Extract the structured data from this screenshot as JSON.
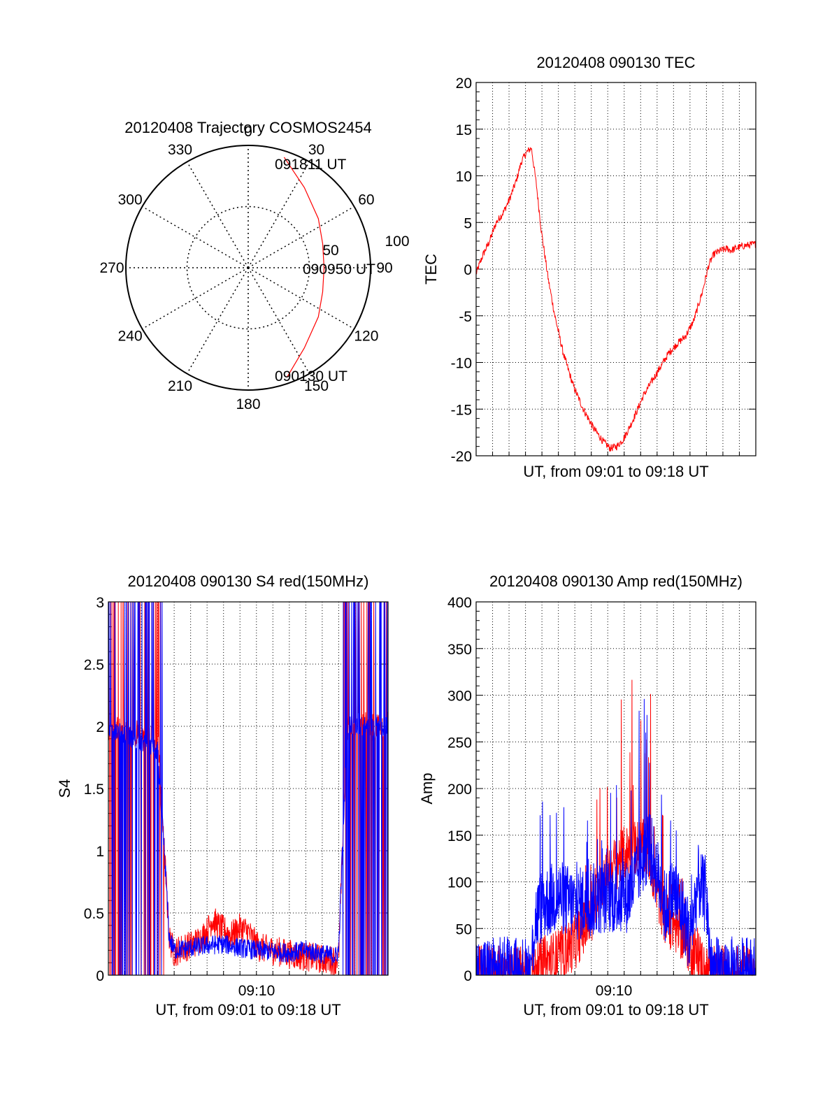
{
  "chart_data": [
    {
      "id": "polar",
      "type": "polar-trajectory",
      "title": "20120408 Trajectory COSMOS2454",
      "azimuth_labels": [
        "0",
        "30",
        "60",
        "90",
        "120",
        "150",
        "180",
        "210",
        "240",
        "270",
        "300",
        "330"
      ],
      "radial_labels": [
        "50",
        "100"
      ],
      "zenith_ticks": [
        0,
        50,
        100
      ],
      "start_label": "090130 UT",
      "mid_label": "090950 UT",
      "end_label": "091811 UT",
      "trajectory": [
        {
          "az": 160.5,
          "zen": 95
        },
        {
          "az": 145,
          "zen": 80
        },
        {
          "az": 125,
          "zen": 70
        },
        {
          "az": 108,
          "zen": 64
        },
        {
          "az": 90,
          "zen": 62
        },
        {
          "az": 72,
          "zen": 64
        },
        {
          "az": 55,
          "zen": 70
        },
        {
          "az": 35,
          "zen": 80
        },
        {
          "az": 18,
          "zen": 95
        }
      ],
      "colors": {
        "line": "#ff0000",
        "grid": "#000000"
      }
    },
    {
      "id": "tec",
      "type": "line",
      "title": "20120408 090130 TEC",
      "xlabel": "UT, from 09:01 to 09:18 UT",
      "ylabel": "TEC",
      "ylim": [
        -20,
        20
      ],
      "yticks": [
        20,
        15,
        10,
        5,
        0,
        -5,
        -10,
        -15,
        -20
      ],
      "xlim": [
        0,
        16.7
      ],
      "series": [
        {
          "color": "#ff0000",
          "x": [
            0.0,
            0.4,
            0.8,
            1.2,
            1.6,
            2.0,
            2.4,
            2.7,
            3.0,
            3.3,
            3.6,
            3.9,
            4.3,
            4.7,
            5.2,
            5.8,
            6.4,
            7.0,
            7.6,
            8.0,
            8.4,
            8.8,
            9.2,
            9.6,
            10.0,
            10.5,
            11.0,
            11.5,
            12.0,
            12.5,
            13.0,
            13.5,
            13.9,
            14.2,
            14.6,
            15.0,
            15.2,
            15.6,
            16.0,
            16.7
          ],
          "y": [
            -0.5,
            1.5,
            3.0,
            5.0,
            6.0,
            7.5,
            9.5,
            11.5,
            12.5,
            13.0,
            9.0,
            4.0,
            -1.0,
            -5.0,
            -9.0,
            -12.5,
            -15.0,
            -17.0,
            -18.5,
            -19.2,
            -19.0,
            -18.2,
            -16.8,
            -15.2,
            -13.5,
            -12.0,
            -10.5,
            -9.0,
            -8.0,
            -7.2,
            -5.5,
            -2.5,
            0.5,
            1.6,
            2.0,
            2.2,
            2.0,
            2.3,
            2.5,
            2.7
          ],
          "noise": 0.4
        }
      ]
    },
    {
      "id": "s4",
      "type": "line",
      "title": "20120408 090130 S4 red(150MHz)",
      "xlabel": "UT, from 09:01 to 09:18 UT",
      "ylabel": "S4",
      "ylim": [
        0,
        3
      ],
      "yticks": [
        "3",
        "2.5",
        "2",
        "1.5",
        "1",
        "0.5",
        "0"
      ],
      "yticks_values": [
        3,
        2.5,
        2,
        1.5,
        1,
        0.5,
        0
      ],
      "xlim": [
        0,
        17
      ],
      "xtick_label": "09:10",
      "xtick_at": 9,
      "series": [
        {
          "color": "#ff0000",
          "x": [
            0.0,
            3.0,
            3.4,
            3.7,
            4.0,
            4.5,
            5.0,
            5.5,
            6.0,
            6.3,
            6.8,
            7.5,
            8.0,
            8.5,
            8.8,
            9.2,
            10.0,
            11.0,
            12.0,
            13.0,
            13.8,
            14.0,
            14.5,
            17.0
          ],
          "y": [
            2.0,
            1.9,
            1.0,
            0.3,
            0.18,
            0.22,
            0.24,
            0.28,
            0.35,
            0.45,
            0.38,
            0.32,
            0.38,
            0.35,
            0.28,
            0.22,
            0.2,
            0.17,
            0.15,
            0.13,
            0.12,
            0.16,
            2.0,
            2.0
          ],
          "noise": 0.12
        },
        {
          "color": "#0000ff",
          "x": [
            0.0,
            3.0,
            3.4,
            3.7,
            4.0,
            5.0,
            6.0,
            7.0,
            8.0,
            9.0,
            10.0,
            11.0,
            12.0,
            13.0,
            13.8,
            14.0,
            14.5,
            17.0
          ],
          "y": [
            2.0,
            1.8,
            1.0,
            0.3,
            0.2,
            0.22,
            0.24,
            0.25,
            0.22,
            0.2,
            0.19,
            0.18,
            0.2,
            0.17,
            0.15,
            0.2,
            2.0,
            2.0
          ],
          "noise": 0.08
        }
      ]
    },
    {
      "id": "amp",
      "type": "line",
      "title": "20120408 090130 Amp red(150MHz)",
      "xlabel": "UT, from 09:01 to 09:18 UT",
      "ylabel": "Amp",
      "ylim": [
        0,
        400
      ],
      "yticks": [
        400,
        350,
        300,
        250,
        200,
        150,
        100,
        50,
        0
      ],
      "xlim": [
        0,
        17
      ],
      "xtick_label": "09:10",
      "xtick_at": 9,
      "series": [
        {
          "color": "#ff0000",
          "x": [
            0.0,
            3.3,
            3.6,
            4.0,
            5.0,
            6.0,
            6.5,
            7.0,
            7.5,
            8.0,
            8.5,
            9.0,
            9.5,
            10.0,
            10.5,
            11.0,
            11.5,
            12.0,
            12.5,
            13.0,
            13.5,
            14.0,
            17.0
          ],
          "y": [
            2,
            2,
            5,
            12,
            20,
            35,
            50,
            60,
            95,
            110,
            120,
            130,
            135,
            140,
            130,
            90,
            60,
            55,
            45,
            30,
            20,
            2,
            2
          ],
          "noise": 30
        },
        {
          "color": "#0000ff",
          "x": [
            0.0,
            3.3,
            3.6,
            4.0,
            5.0,
            6.0,
            7.0,
            8.0,
            9.0,
            9.5,
            10.0,
            10.5,
            11.0,
            11.5,
            12.0,
            12.5,
            13.0,
            13.5,
            14.0,
            14.3,
            17.0
          ],
          "y": [
            2,
            2,
            60,
            75,
            85,
            75,
            80,
            85,
            80,
            95,
            120,
            140,
            110,
            70,
            90,
            70,
            40,
            100,
            80,
            2,
            2
          ],
          "noise": 40
        }
      ]
    }
  ]
}
